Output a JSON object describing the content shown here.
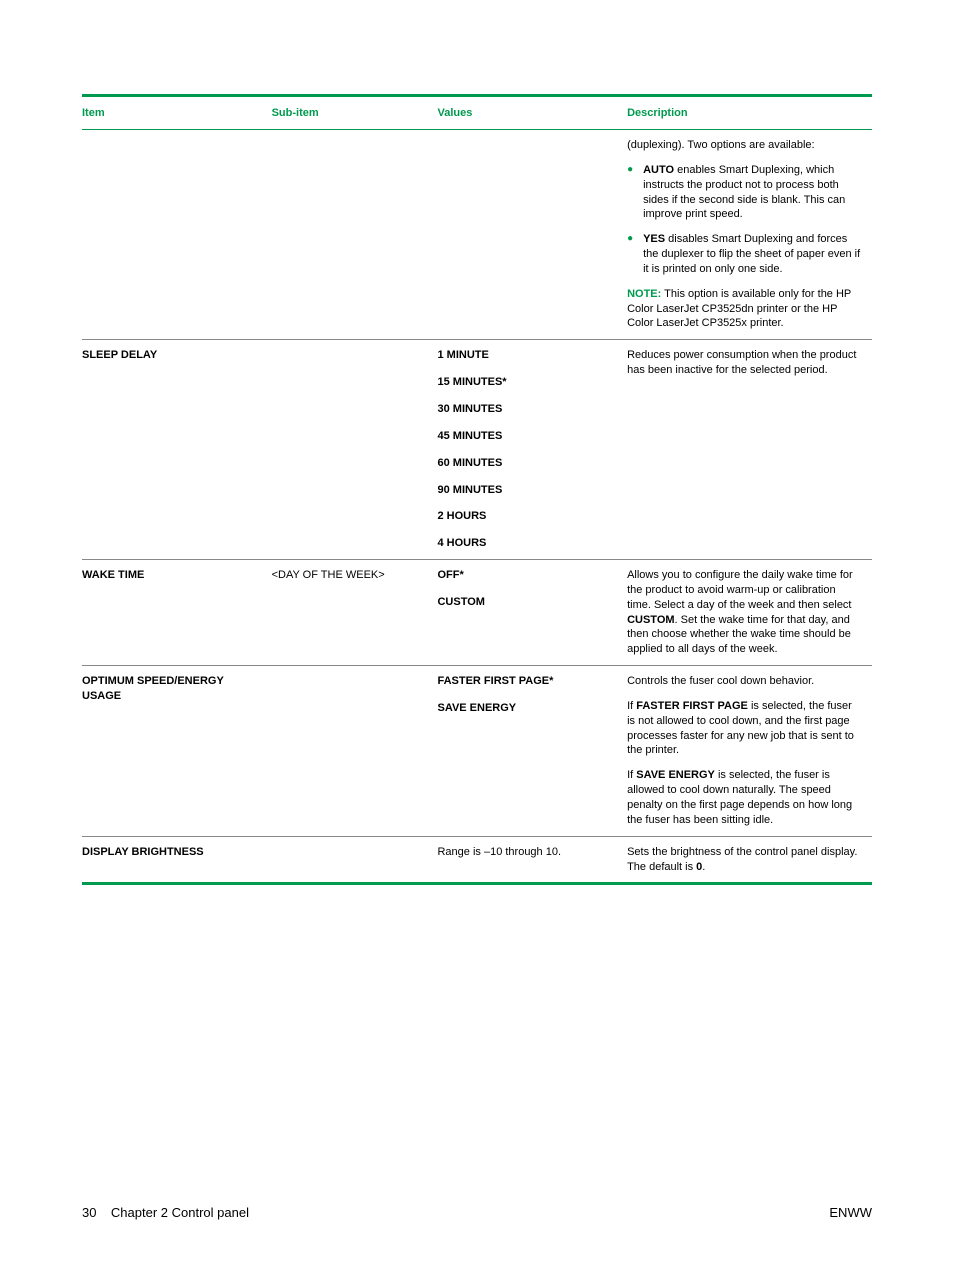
{
  "colors": {
    "accent": "#009a4e",
    "text": "#000000",
    "row_border": "#888888",
    "background": "#ffffff"
  },
  "typography": {
    "body_fontsize": 11,
    "header_fontsize": 11,
    "footer_fontsize": 13,
    "font_family": "Arial"
  },
  "table": {
    "headers": {
      "item": "Item",
      "subitem": "Sub-item",
      "values": "Values",
      "description": "Description"
    },
    "rows": [
      {
        "item": "",
        "subitem": "",
        "values": [],
        "desc": {
          "intro": "(duplexing). Two options are available:",
          "bullets": [
            {
              "lead": "AUTO",
              "text": " enables Smart Duplexing, which instructs the product not to process both sides if the second side is blank. This can improve print speed."
            },
            {
              "lead": "YES",
              "text": " disables Smart Duplexing and forces the duplexer to flip the sheet of paper even if it is printed on only one side."
            }
          ],
          "note_label": "NOTE:",
          "note_text": "   This option is available only for the HP Color LaserJet CP3525dn printer or the HP Color LaserJet CP3525x printer."
        }
      },
      {
        "item": "SLEEP DELAY",
        "subitem": "",
        "values": [
          "1 MINUTE",
          "15 MINUTES*",
          "30 MINUTES",
          "45 MINUTES",
          "60 MINUTES",
          "90 MINUTES",
          "2 HOURS",
          "4 HOURS"
        ],
        "desc": {
          "plain": "Reduces power consumption when the product has been inactive for the selected period."
        }
      },
      {
        "item": "WAKE TIME",
        "subitem": "<DAY OF THE WEEK>",
        "values": [
          "OFF*",
          "CUSTOM"
        ],
        "desc": {
          "rich": [
            {
              "t": "Allows you to configure the daily wake time for the product to avoid warm-up or calibration time. Select a day of the week and then select "
            },
            {
              "b": "CUSTOM"
            },
            {
              "t": ". Set the wake time for that day, and then choose whether the wake time should be applied to all days of the week."
            }
          ]
        }
      },
      {
        "item": "OPTIMUM SPEED/ENERGY USAGE",
        "subitem": "",
        "values": [
          "FASTER FIRST PAGE*",
          "SAVE ENERGY"
        ],
        "desc": {
          "paras": [
            [
              {
                "t": "Controls the fuser cool down behavior."
              }
            ],
            [
              {
                "t": "If "
              },
              {
                "b": "FASTER FIRST PAGE"
              },
              {
                "t": " is selected, the fuser is not allowed to cool down, and the first page processes faster for any new job that is sent to the printer."
              }
            ],
            [
              {
                "t": "If "
              },
              {
                "b": "SAVE ENERGY"
              },
              {
                "t": " is selected, the fuser is allowed to cool down naturally. The speed penalty on the first page depends on how long the fuser has been sitting idle."
              }
            ]
          ]
        }
      },
      {
        "item": "DISPLAY BRIGHTNESS",
        "subitem": "",
        "values_plain": "Range is –10 through 10.",
        "desc": {
          "rich": [
            {
              "t": "Sets the brightness of the control panel display. The default is "
            },
            {
              "b": "0"
            },
            {
              "t": "."
            }
          ]
        }
      }
    ]
  },
  "footer": {
    "page": "30",
    "chapter": "Chapter 2   Control panel",
    "right": "ENWW"
  }
}
